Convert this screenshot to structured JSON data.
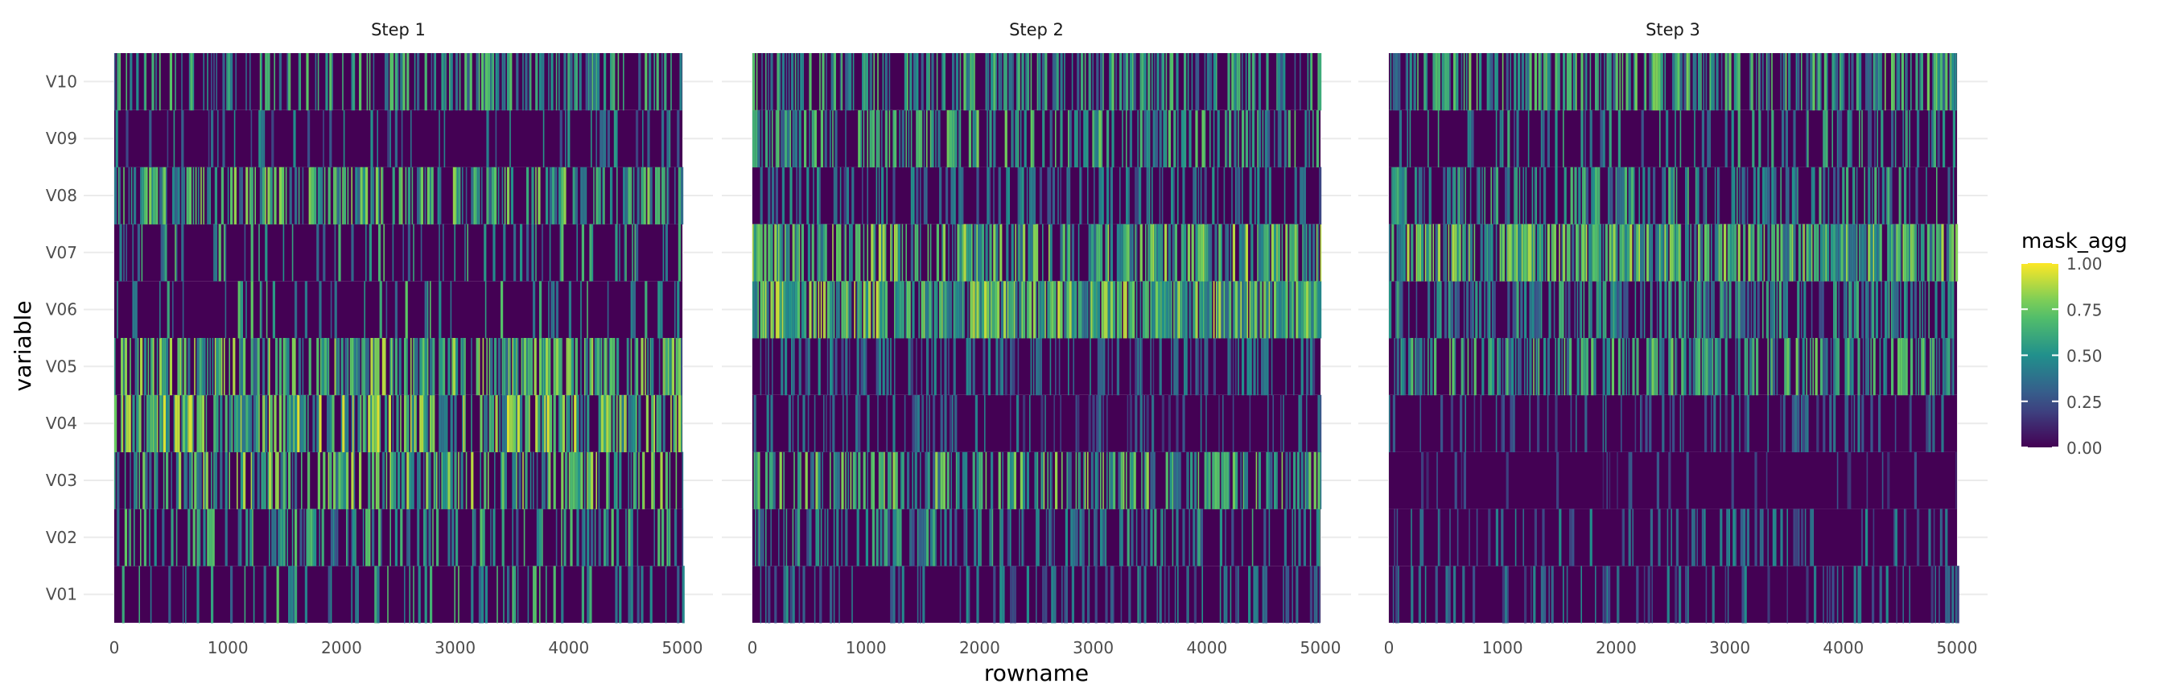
{
  "chart_data": {
    "type": "heatmap",
    "xlabel": "rowname",
    "ylabel": "variable",
    "facets": [
      "Step 1",
      "Step 2",
      "Step 3"
    ],
    "variables": [
      "V01",
      "V02",
      "V03",
      "V04",
      "V05",
      "V06",
      "V07",
      "V08",
      "V09",
      "V10"
    ],
    "xlim": [
      0,
      5000
    ],
    "x_ticks": [
      "0",
      "1000",
      "2000",
      "3000",
      "4000",
      "5000"
    ],
    "grid": true,
    "colormap": "viridis",
    "colors": [
      "#440154",
      "#3b528b",
      "#21908c",
      "#5dc863",
      "#fde725"
    ],
    "legend": {
      "title": "mask_agg",
      "position": "right",
      "ticks": [
        "1.00",
        "0.75",
        "0.50",
        "0.25",
        "0.00"
      ],
      "range": [
        0,
        1
      ]
    },
    "density": {
      "Step 1": {
        "V01": 0.18,
        "V02": 0.3,
        "V03": 0.42,
        "V04": 0.6,
        "V05": 0.55,
        "V06": 0.12,
        "V07": 0.14,
        "V08": 0.45,
        "V09": 0.1,
        "V10": 0.35
      },
      "Step 2": {
        "V01": 0.22,
        "V02": 0.32,
        "V03": 0.5,
        "V04": 0.2,
        "V05": 0.28,
        "V06": 0.8,
        "V07": 0.55,
        "V08": 0.25,
        "V09": 0.4,
        "V10": 0.45
      },
      "Step 3": {
        "V01": 0.18,
        "V02": 0.15,
        "V03": 0.05,
        "V04": 0.2,
        "V05": 0.45,
        "V06": 0.4,
        "V07": 0.7,
        "V08": 0.35,
        "V09": 0.22,
        "V10": 0.48
      }
    },
    "intensity": {
      "Step 1": {
        "V01": 0.75,
        "V02": 0.75,
        "V03": 0.9,
        "V04": 0.95,
        "V05": 0.9,
        "V06": 0.75,
        "V07": 0.75,
        "V08": 0.85,
        "V09": 0.55,
        "V10": 0.75
      },
      "Step 2": {
        "V01": 0.55,
        "V02": 0.65,
        "V03": 0.85,
        "V04": 0.45,
        "V05": 0.5,
        "V06": 0.95,
        "V07": 0.9,
        "V08": 0.55,
        "V09": 0.8,
        "V10": 0.75
      },
      "Step 3": {
        "V01": 0.5,
        "V02": 0.5,
        "V03": 0.3,
        "V04": 0.45,
        "V05": 0.8,
        "V06": 0.65,
        "V07": 0.9,
        "V08": 0.7,
        "V09": 0.65,
        "V10": 0.8
      }
    }
  }
}
